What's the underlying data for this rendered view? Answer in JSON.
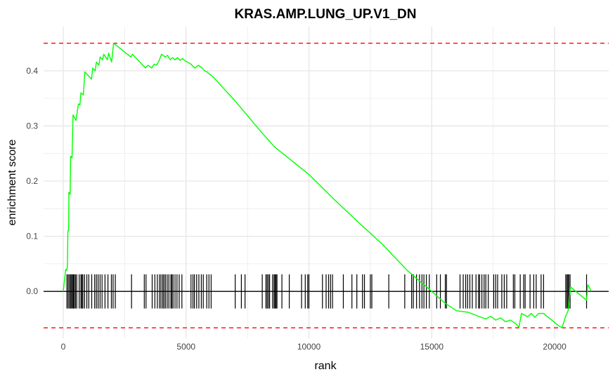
{
  "chart_data": {
    "type": "line",
    "title": "KRAS.AMP.LUNG_UP.V1_DN",
    "xlabel": "rank",
    "ylabel": "enrichment score",
    "xlim": [
      -800,
      22200
    ],
    "ylim": [
      -0.085,
      0.48
    ],
    "x_ticks": [
      0,
      5000,
      10000,
      15000,
      20000
    ],
    "y_ticks": [
      0.0,
      0.1,
      0.2,
      0.3,
      0.4
    ],
    "y_tick_labels": [
      "0.0",
      "0.1",
      "0.2",
      "0.3",
      "0.4"
    ],
    "grid": true,
    "threshold_lines": {
      "max": 0.45,
      "min": -0.066,
      "color": "#ff0000",
      "style": "dashed"
    },
    "zero_line": 0.0,
    "series": [
      {
        "color": "#00ff00",
        "points": [
          [
            0,
            0.0
          ],
          [
            100,
            0.04
          ],
          [
            140,
            0.038
          ],
          [
            170,
            0.045
          ],
          [
            190,
            0.11
          ],
          [
            220,
            0.11
          ],
          [
            230,
            0.18
          ],
          [
            280,
            0.176
          ],
          [
            300,
            0.245
          ],
          [
            360,
            0.242
          ],
          [
            400,
            0.32
          ],
          [
            520,
            0.31
          ],
          [
            620,
            0.34
          ],
          [
            680,
            0.338
          ],
          [
            720,
            0.36
          ],
          [
            820,
            0.356
          ],
          [
            880,
            0.398
          ],
          [
            1150,
            0.385
          ],
          [
            1200,
            0.405
          ],
          [
            1300,
            0.4
          ],
          [
            1350,
            0.416
          ],
          [
            1450,
            0.41
          ],
          [
            1500,
            0.425
          ],
          [
            1600,
            0.42
          ],
          [
            1650,
            0.43
          ],
          [
            1800,
            0.42
          ],
          [
            1850,
            0.432
          ],
          [
            1970,
            0.416
          ],
          [
            2050,
            0.45
          ],
          [
            2750,
            0.425
          ],
          [
            2820,
            0.43
          ],
          [
            3200,
            0.412
          ],
          [
            3350,
            0.405
          ],
          [
            3450,
            0.41
          ],
          [
            3600,
            0.405
          ],
          [
            3700,
            0.412
          ],
          [
            3800,
            0.41
          ],
          [
            3900,
            0.418
          ],
          [
            4000,
            0.43
          ],
          [
            4150,
            0.425
          ],
          [
            4250,
            0.428
          ],
          [
            4350,
            0.42
          ],
          [
            4450,
            0.424
          ],
          [
            4550,
            0.42
          ],
          [
            4650,
            0.424
          ],
          [
            4750,
            0.419
          ],
          [
            4850,
            0.422
          ],
          [
            5000,
            0.417
          ],
          [
            5200,
            0.412
          ],
          [
            5350,
            0.405
          ],
          [
            5500,
            0.41
          ],
          [
            5650,
            0.405
          ],
          [
            5750,
            0.4
          ],
          [
            5850,
            0.398
          ],
          [
            5950,
            0.394
          ],
          [
            6100,
            0.389
          ],
          [
            7000,
            0.345
          ],
          [
            8000,
            0.292
          ],
          [
            8600,
            0.262
          ],
          [
            10000,
            0.212
          ],
          [
            11000,
            0.168
          ],
          [
            12000,
            0.126
          ],
          [
            13000,
            0.085
          ],
          [
            14000,
            0.038
          ],
          [
            15000,
            0.0
          ],
          [
            15500,
            -0.02
          ],
          [
            16000,
            -0.035
          ],
          [
            16500,
            -0.038
          ],
          [
            16900,
            -0.045
          ],
          [
            17200,
            -0.05
          ],
          [
            17400,
            -0.045
          ],
          [
            17600,
            -0.052
          ],
          [
            17800,
            -0.048
          ],
          [
            18000,
            -0.055
          ],
          [
            18200,
            -0.052
          ],
          [
            18400,
            -0.058
          ],
          [
            18550,
            -0.065
          ],
          [
            18650,
            -0.04
          ],
          [
            18900,
            -0.046
          ],
          [
            19050,
            -0.04
          ],
          [
            19200,
            -0.047
          ],
          [
            19350,
            -0.04
          ],
          [
            19550,
            -0.04
          ],
          [
            20100,
            -0.06
          ],
          [
            20300,
            -0.066
          ],
          [
            20450,
            -0.045
          ],
          [
            20550,
            -0.035
          ],
          [
            20650,
            0.008
          ],
          [
            21300,
            -0.016
          ],
          [
            21350,
            0.012
          ],
          [
            21500,
            0.0
          ]
        ]
      }
    ],
    "gene_hits": [
      150,
      200,
      250,
      300,
      340,
      380,
      420,
      450,
      500,
      550,
      650,
      720,
      760,
      800,
      870,
      960,
      1040,
      1160,
      1280,
      1350,
      1420,
      1500,
      1580,
      1700,
      1820,
      1960,
      2030,
      2120,
      2780,
      3300,
      3370,
      3620,
      3730,
      3830,
      3920,
      3980,
      4050,
      4100,
      4160,
      4230,
      4300,
      4380,
      4420,
      4470,
      4550,
      4630,
      4720,
      4830,
      5200,
      5280,
      5340,
      5430,
      5520,
      5620,
      5700,
      5840,
      5930,
      6020,
      7000,
      7250,
      7400,
      8100,
      8250,
      8300,
      8350,
      8400,
      8520,
      8580,
      8620,
      8660,
      8700,
      8900,
      9200,
      9700,
      9850,
      9950,
      10000,
      10550,
      10700,
      10800,
      10880,
      10960,
      11400,
      11750,
      11950,
      12180,
      12260,
      12500,
      12560,
      13250,
      13900,
      14180,
      14250,
      14380,
      14500,
      14600,
      14680,
      14780,
      14900,
      15200,
      15350,
      15550,
      15600,
      16150,
      16280,
      16380,
      16460,
      16550,
      16650,
      16800,
      16900,
      16950,
      17040,
      17130,
      17200,
      17300,
      17520,
      17600,
      17680,
      17850,
      17950,
      18050,
      18320,
      18380,
      18600,
      18740,
      18800,
      19000,
      19150,
      19250,
      19450,
      19550,
      20450,
      20500,
      20540,
      20580,
      20630,
      21300
    ]
  }
}
